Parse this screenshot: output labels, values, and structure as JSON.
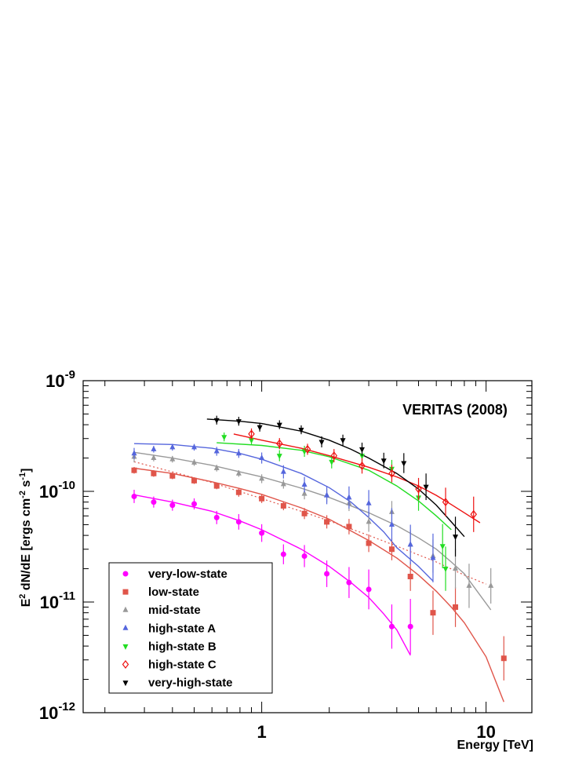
{
  "chart_data": {
    "type": "scatter",
    "title": "VERITAS (2008)",
    "xlabel": "Energy [TeV]",
    "ylabel": {
      "base": "E",
      "sup1": "2",
      "mid": " dN/dE [ergs cm",
      "sup2": "-2",
      "mid2": " s",
      "sup3": "-1",
      "end": "]"
    },
    "x_scale": "log",
    "y_scale": "log",
    "xlim": [
      0.16,
      16
    ],
    "ylim": [
      1e-12,
      1e-09
    ],
    "x_ticks": [
      {
        "value": 1,
        "label": "1"
      },
      {
        "value": 10,
        "label": "10"
      }
    ],
    "y_ticks": [
      {
        "value": 1e-12,
        "base": "10",
        "exp": "-12"
      },
      {
        "value": 1e-11,
        "base": "10",
        "exp": "-11"
      },
      {
        "value": 1e-10,
        "base": "10",
        "exp": "-10"
      },
      {
        "value": 1e-09,
        "base": "10",
        "exp": "-9"
      }
    ],
    "grid": false,
    "legend_position": "bottom-left",
    "series": [
      {
        "name": "very-low-state",
        "color": "#ff00ff",
        "marker": "circle",
        "points": [
          [
            0.27,
            9e-11
          ],
          [
            0.33,
            8e-11
          ],
          [
            0.4,
            7.5e-11
          ],
          [
            0.5,
            7.7e-11
          ],
          [
            0.63,
            5.8e-11
          ],
          [
            0.79,
            5.3e-11
          ],
          [
            1.0,
            4.2e-11
          ],
          [
            1.25,
            2.7e-11
          ],
          [
            1.55,
            2.6e-11
          ],
          [
            1.95,
            1.8e-11
          ],
          [
            2.45,
            1.5e-11
          ],
          [
            3.0,
            1.3e-11
          ],
          [
            3.8,
            6e-12
          ],
          [
            4.6,
            6e-12
          ]
        ],
        "errors": [
          0.06,
          0.05,
          0.05,
          0.05,
          0.06,
          0.07,
          0.08,
          0.09,
          0.1,
          0.12,
          0.14,
          0.18,
          0.2,
          0.25
        ],
        "fit": [
          [
            0.27,
            9.3e-11
          ],
          [
            0.4,
            8e-11
          ],
          [
            0.6,
            6.6e-11
          ],
          [
            0.8,
            5.4e-11
          ],
          [
            1.0,
            4.5e-11
          ],
          [
            1.5,
            3e-11
          ],
          [
            2.0,
            2.1e-11
          ],
          [
            2.5,
            1.5e-11
          ],
          [
            3.0,
            1.1e-11
          ],
          [
            3.5,
            7.8e-12
          ],
          [
            4.0,
            5.6e-12
          ],
          [
            4.6,
            3.3e-12
          ]
        ]
      },
      {
        "name": "low-state",
        "color": "#e0554a",
        "marker": "square",
        "points": [
          [
            0.27,
            1.55e-10
          ],
          [
            0.33,
            1.45e-10
          ],
          [
            0.4,
            1.38e-10
          ],
          [
            0.5,
            1.25e-10
          ],
          [
            0.63,
            1.12e-10
          ],
          [
            0.79,
            9.8e-11
          ],
          [
            1.0,
            8.6e-11
          ],
          [
            1.25,
            7.4e-11
          ],
          [
            1.55,
            6.3e-11
          ],
          [
            1.95,
            5.3e-11
          ],
          [
            2.45,
            4.8e-11
          ],
          [
            3.0,
            3.4e-11
          ],
          [
            3.8,
            3e-11
          ],
          [
            4.6,
            1.7e-11
          ],
          [
            5.8,
            8e-12
          ],
          [
            7.3,
            9e-12
          ],
          [
            12.0,
            3.1e-12
          ]
        ],
        "errors": [
          0.03,
          0.03,
          0.03,
          0.03,
          0.03,
          0.04,
          0.04,
          0.04,
          0.05,
          0.06,
          0.07,
          0.08,
          0.1,
          0.13,
          0.2,
          0.18,
          0.2
        ],
        "fit": [
          [
            0.27,
            1.62e-10
          ],
          [
            0.4,
            1.45e-10
          ],
          [
            0.6,
            1.22e-10
          ],
          [
            0.8,
            1.06e-10
          ],
          [
            1.0,
            9.4e-11
          ],
          [
            1.5,
            7.1e-11
          ],
          [
            2.0,
            5.6e-11
          ],
          [
            3.0,
            3.6e-11
          ],
          [
            4.0,
            2.5e-11
          ],
          [
            5.0,
            1.75e-11
          ],
          [
            6.0,
            1.25e-11
          ],
          [
            7.0,
            9e-12
          ],
          [
            8.0,
            6.5e-12
          ],
          [
            10.0,
            3.2e-12
          ],
          [
            12.0,
            1.25e-12
          ]
        ],
        "extra_fit": [
          [
            0.27,
            1.85e-10
          ],
          [
            0.4,
            1.5e-10
          ],
          [
            0.6,
            1.2e-10
          ],
          [
            1.0,
            8.6e-11
          ],
          [
            1.5,
            6.6e-11
          ],
          [
            2.0,
            5.4e-11
          ],
          [
            3.0,
            4e-11
          ],
          [
            4.0,
            3.2e-11
          ],
          [
            6.0,
            2.3e-11
          ],
          [
            8.0,
            1.75e-11
          ],
          [
            10.0,
            1.45e-11
          ]
        ]
      },
      {
        "name": "mid-state",
        "color": "#999999",
        "marker": "triangle-up",
        "points": [
          [
            0.27,
            2.05e-10
          ],
          [
            0.33,
            2e-10
          ],
          [
            0.4,
            1.95e-10
          ],
          [
            0.5,
            1.82e-10
          ],
          [
            0.63,
            1.62e-10
          ],
          [
            0.79,
            1.45e-10
          ],
          [
            1.0,
            1.3e-10
          ],
          [
            1.25,
            1.16e-10
          ],
          [
            1.55,
            9.5e-11
          ],
          [
            1.95,
            9.2e-11
          ],
          [
            2.45,
            7.8e-11
          ],
          [
            3.0,
            5.3e-11
          ],
          [
            3.8,
            6.5e-11
          ],
          [
            4.6,
            3.3e-11
          ],
          [
            5.8,
            2.6e-11
          ],
          [
            7.3,
            2e-11
          ],
          [
            8.4,
            1.4e-11
          ],
          [
            10.5,
            1.4e-11
          ]
        ],
        "errors": [
          0.05,
          0.03,
          0.03,
          0.03,
          0.03,
          0.03,
          0.04,
          0.04,
          0.05,
          0.06,
          0.07,
          0.09,
          0.1,
          0.13,
          0.15,
          0.18,
          0.2,
          0.16
        ],
        "fit": [
          [
            0.27,
            2.25e-10
          ],
          [
            0.4,
            2e-10
          ],
          [
            0.6,
            1.72e-10
          ],
          [
            0.8,
            1.5e-10
          ],
          [
            1.0,
            1.35e-10
          ],
          [
            1.5,
            1.07e-10
          ],
          [
            2.0,
            8.8e-11
          ],
          [
            3.0,
            6.4e-11
          ],
          [
            4.0,
            4.9e-11
          ],
          [
            5.0,
            3.8e-11
          ],
          [
            6.0,
            3e-11
          ],
          [
            7.0,
            2.3e-11
          ],
          [
            8.0,
            1.8e-11
          ],
          [
            10.5,
            8.5e-12
          ]
        ]
      },
      {
        "name": "high-state A",
        "color": "#5566dd",
        "marker": "triangle-up",
        "points": [
          [
            0.27,
            2.2e-10
          ],
          [
            0.33,
            2.4e-10
          ],
          [
            0.4,
            2.5e-10
          ],
          [
            0.5,
            2.5e-10
          ],
          [
            0.63,
            2.3e-10
          ],
          [
            0.79,
            2.2e-10
          ],
          [
            1.0,
            2e-10
          ],
          [
            1.25,
            1.5e-10
          ],
          [
            1.55,
            1.15e-10
          ],
          [
            1.95,
            9.2e-11
          ],
          [
            2.45,
            8.8e-11
          ],
          [
            3.0,
            7.8e-11
          ],
          [
            3.8,
            5e-11
          ],
          [
            4.6,
            3.3e-11
          ],
          [
            5.8,
            2.5e-11
          ]
        ],
        "errors": [
          0.05,
          0.03,
          0.03,
          0.03,
          0.04,
          0.04,
          0.05,
          0.06,
          0.07,
          0.08,
          0.1,
          0.12,
          0.15,
          0.18,
          0.22
        ],
        "fit": [
          [
            0.27,
            2.7e-10
          ],
          [
            0.4,
            2.65e-10
          ],
          [
            0.6,
            2.45e-10
          ],
          [
            0.8,
            2.2e-10
          ],
          [
            1.0,
            1.95e-10
          ],
          [
            1.5,
            1.45e-10
          ],
          [
            2.0,
            1.08e-10
          ],
          [
            2.5,
            8e-11
          ],
          [
            3.0,
            5.8e-11
          ],
          [
            3.5,
            4.3e-11
          ],
          [
            4.0,
            3.1e-11
          ],
          [
            5.0,
            2.1e-11
          ],
          [
            5.8,
            1.55e-11
          ]
        ]
      },
      {
        "name": "high-state B",
        "color": "#22dd22",
        "marker": "triangle-down",
        "points": [
          [
            0.68,
            3.1e-10
          ],
          [
            0.9,
            2.9e-10
          ],
          [
            1.2,
            2.1e-10
          ],
          [
            1.55,
            2.3e-10
          ],
          [
            2.05,
            1.85e-10
          ],
          [
            2.8,
            2.1e-10
          ],
          [
            3.8,
            1.6e-10
          ],
          [
            5.0,
            8.8e-11
          ],
          [
            6.4,
            3.2e-11
          ],
          [
            6.6,
            2e-11
          ]
        ],
        "errors": [
          0.04,
          0.04,
          0.05,
          0.05,
          0.06,
          0.07,
          0.08,
          0.12,
          0.2,
          0.2
        ],
        "fit": [
          [
            0.63,
            2.75e-10
          ],
          [
            1.0,
            2.6e-10
          ],
          [
            1.5,
            2.35e-10
          ],
          [
            2.0,
            2.05e-10
          ],
          [
            3.0,
            1.55e-10
          ],
          [
            4.0,
            1.12e-10
          ],
          [
            5.0,
            8.2e-11
          ],
          [
            6.0,
            6e-11
          ],
          [
            7.0,
            4.5e-11
          ]
        ]
      },
      {
        "name": "high-state C",
        "color": "#ee1111",
        "marker": "diamond",
        "points": [
          [
            0.9,
            3.3e-10
          ],
          [
            1.2,
            2.7e-10
          ],
          [
            1.6,
            2.4e-10
          ],
          [
            2.1,
            2.1e-10
          ],
          [
            2.8,
            1.7e-10
          ],
          [
            3.8,
            1.45e-10
          ],
          [
            5.0,
            1.05e-10
          ],
          [
            6.6,
            8e-11
          ],
          [
            8.8,
            6.2e-11
          ]
        ],
        "errors": [
          0.05,
          0.05,
          0.05,
          0.06,
          0.07,
          0.08,
          0.1,
          0.13,
          0.16
        ],
        "fit": [
          [
            0.75,
            3.3e-10
          ],
          [
            1.0,
            2.9e-10
          ],
          [
            1.5,
            2.45e-10
          ],
          [
            2.0,
            2.1e-10
          ],
          [
            3.0,
            1.65e-10
          ],
          [
            4.0,
            1.35e-10
          ],
          [
            5.0,
            1.12e-10
          ],
          [
            6.0,
            9.2e-11
          ],
          [
            7.0,
            7.6e-11
          ],
          [
            8.0,
            6.4e-11
          ],
          [
            9.4,
            5.2e-11
          ]
        ]
      },
      {
        "name": "very-high-state",
        "color": "#000000",
        "marker": "triangle-down",
        "points": [
          [
            0.63,
            4.4e-10
          ],
          [
            0.79,
            4.3e-10
          ],
          [
            0.98,
            3.8e-10
          ],
          [
            1.2,
            4e-10
          ],
          [
            1.5,
            3.6e-10
          ],
          [
            1.85,
            2.8e-10
          ],
          [
            2.3,
            2.9e-10
          ],
          [
            2.8,
            2.4e-10
          ],
          [
            3.5,
            1.9e-10
          ],
          [
            4.3,
            1.8e-10
          ],
          [
            5.4,
            1.1e-10
          ],
          [
            7.3,
            3.9e-11
          ]
        ],
        "errors": [
          0.04,
          0.04,
          0.04,
          0.04,
          0.04,
          0.05,
          0.05,
          0.06,
          0.07,
          0.09,
          0.12,
          0.18
        ],
        "fit": [
          [
            0.57,
            4.5e-10
          ],
          [
            0.8,
            4.3e-10
          ],
          [
            1.0,
            4.1e-10
          ],
          [
            1.5,
            3.5e-10
          ],
          [
            2.0,
            2.9e-10
          ],
          [
            2.5,
            2.4e-10
          ],
          [
            3.0,
            2e-10
          ],
          [
            4.0,
            1.45e-10
          ],
          [
            5.0,
            1.05e-10
          ],
          [
            6.0,
            7.5e-11
          ],
          [
            7.0,
            5.3e-11
          ],
          [
            8.0,
            3.9e-11
          ]
        ]
      }
    ]
  }
}
